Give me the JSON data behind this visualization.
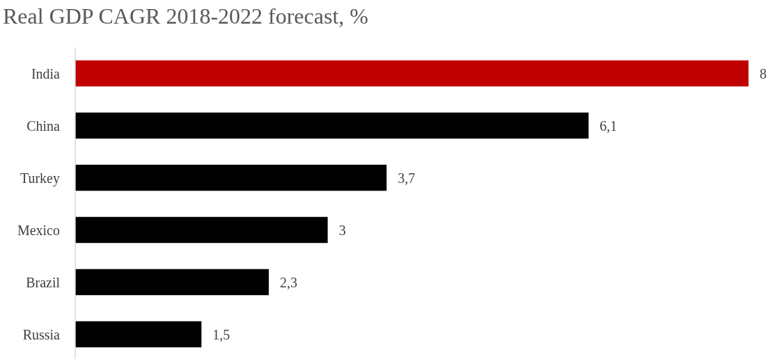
{
  "chart_data": {
    "type": "bar",
    "orientation": "horizontal",
    "title": "Real GDP CAGR 2018-2022 forecast, %",
    "categories": [
      "India",
      "China",
      "Turkey",
      "Mexico",
      "Brazil",
      "Russia"
    ],
    "values": [
      8,
      6.1,
      3.7,
      3,
      2.3,
      1.5
    ],
    "colors": [
      "#c00000",
      "#000000",
      "#000000",
      "#000000",
      "#000000",
      "#000000"
    ],
    "value_labels": [
      "8",
      "6,1",
      "3,7",
      "3",
      "2,3",
      "1,5"
    ]
  }
}
